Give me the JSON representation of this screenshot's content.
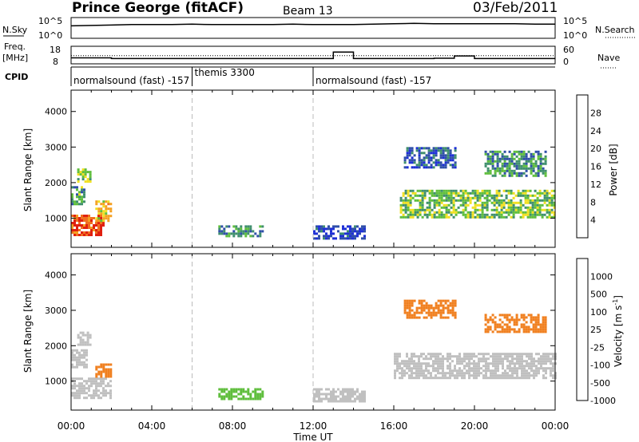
{
  "header": {
    "station": "Prince George (fitACF)",
    "beam": "Beam 13",
    "date": "03/Feb/2011"
  },
  "chart_data": [
    {
      "type": "line",
      "panel": "noise",
      "left_label": "N.Sky",
      "right_label": "N.Search",
      "left_ticks": [
        "10^5",
        "10^0"
      ],
      "right_ticks": [
        "10^5",
        "10^0"
      ],
      "x": [
        "00:00",
        "01:00",
        "02:00",
        "03:00",
        "04:00",
        "05:00",
        "06:00",
        "07:00",
        "08:00",
        "09:00",
        "10:00",
        "11:00",
        "12:00",
        "13:00",
        "14:00",
        "15:00",
        "16:00",
        "17:00",
        "18:00",
        "19:00",
        "20:00",
        "21:00",
        "22:00",
        "23:00",
        "00:00"
      ],
      "series": [
        {
          "values": [
            3.0,
            3.1,
            3.2,
            3.3,
            3.3,
            3.3,
            3.4,
            3.3,
            3.3,
            3.3,
            3.3,
            3.4,
            3.3,
            3.3,
            3.3,
            3.4,
            3.5,
            3.6,
            3.5,
            3.5,
            3.5,
            3.5,
            3.5,
            3.4,
            3.4
          ],
          "style": "solid"
        }
      ]
    },
    {
      "type": "line",
      "panel": "frequency",
      "left_label": "Freq.",
      "left_unit": "[MHz]",
      "right_label": "Nave",
      "left_ticks": [
        "18",
        "8"
      ],
      "right_ticks": [
        "60",
        "0"
      ],
      "x": [
        "00:00",
        "02:00",
        "04:00",
        "06:00",
        "08:00",
        "10:00",
        "12:00",
        "13:00",
        "14:00",
        "16:00",
        "18:00",
        "19:00",
        "20:00",
        "22:00",
        "00:00"
      ],
      "series": [
        {
          "name": "Freq",
          "values": [
            11.4,
            11.0,
            11.0,
            11.0,
            11.0,
            11.0,
            11.0,
            14.7,
            11.0,
            11.0,
            11.2,
            12.5,
            11.0,
            11.0,
            11.0
          ],
          "style": "solid"
        },
        {
          "name": "Nave",
          "values": [
            28,
            28,
            28,
            28,
            28,
            28,
            28,
            28,
            28,
            28,
            28,
            28,
            28,
            28,
            28
          ],
          "style": "dotted"
        }
      ]
    },
    {
      "type": "table",
      "panel": "cpid",
      "label": "CPID",
      "segments": [
        {
          "start": "00:00",
          "end": "06:00",
          "label": "normalsound (fast) -157"
        },
        {
          "start": "06:00",
          "end": "12:00",
          "label": "themis 3300"
        },
        {
          "start": "12:00",
          "end": "00:00",
          "label": "normalsound (fast) -157"
        }
      ]
    },
    {
      "type": "heatmap",
      "panel": "power",
      "ylabel": "Slant Range [km]",
      "yticks": [
        "1000",
        "2000",
        "3000",
        "4000"
      ],
      "ylim": [
        180,
        4600
      ],
      "colorbar_label": "Power [dB]",
      "colorbar_ticks": [
        "4",
        "8",
        "12",
        "16",
        "20",
        "24",
        "28"
      ],
      "colors": [
        "#1d2fd6",
        "#2f4fa8",
        "#3f8f6d",
        "#5fbe3d",
        "#f0e020",
        "#f5a020",
        "#f07020",
        "#e02010"
      ],
      "patches": [
        {
          "t0": 0.0,
          "t1": 1.6,
          "r0": 550,
          "r1": 1100,
          "value": 28
        },
        {
          "t0": 0.0,
          "t1": 0.6,
          "r0": 1400,
          "r1": 1900,
          "value": 12
        },
        {
          "t0": 0.3,
          "t1": 1.0,
          "r0": 2000,
          "r1": 2400,
          "value": 14
        },
        {
          "t0": 1.2,
          "t1": 2.0,
          "r0": 900,
          "r1": 1500,
          "value": 20
        },
        {
          "t0": 7.3,
          "t1": 9.5,
          "r0": 500,
          "r1": 800,
          "value": 10
        },
        {
          "t0": 12.0,
          "t1": 14.5,
          "r0": 450,
          "r1": 800,
          "value": 4
        },
        {
          "t0": 16.3,
          "t1": 24.0,
          "r0": 1000,
          "r1": 1800,
          "value": 14
        },
        {
          "t0": 16.5,
          "t1": 19.0,
          "r0": 2400,
          "r1": 3000,
          "value": 6
        },
        {
          "t0": 20.5,
          "t1": 23.5,
          "r0": 2200,
          "r1": 2900,
          "value": 10
        }
      ]
    },
    {
      "type": "heatmap",
      "panel": "velocity",
      "ylabel": "Slant Range [km]",
      "yticks": [
        "1000",
        "2000",
        "3000",
        "4000"
      ],
      "ylim": [
        180,
        4600
      ],
      "colorbar_label": "Velocity [m s",
      "colorbar_unit_sup": "-1",
      "colorbar_ticks": [
        "1000",
        "500",
        "100",
        "25",
        "-25",
        "-100",
        "-500",
        "-1000"
      ],
      "colors": [
        "#1d2fd6",
        "#2f4fa8",
        "#3f8f6d",
        "#5fbe3d",
        "#c0c0c0",
        "#f5c020",
        "#f08020",
        "#e02010"
      ],
      "patches": [
        {
          "t0": 0.0,
          "t1": 2.0,
          "r0": 550,
          "r1": 1100,
          "value": 0
        },
        {
          "t0": 0.0,
          "t1": 0.8,
          "r0": 1400,
          "r1": 1900,
          "value": 0
        },
        {
          "t0": 0.3,
          "t1": 1.0,
          "r0": 2000,
          "r1": 2400,
          "value": 0
        },
        {
          "t0": 1.2,
          "t1": 2.0,
          "r0": 1100,
          "r1": 1500,
          "value": -300
        },
        {
          "t0": 7.3,
          "t1": 9.5,
          "r0": 500,
          "r1": 800,
          "value": 50
        },
        {
          "t0": 12.0,
          "t1": 14.5,
          "r0": 450,
          "r1": 800,
          "value": 0
        },
        {
          "t0": 16.0,
          "t1": 24.0,
          "r0": 1100,
          "r1": 1800,
          "value": 0
        },
        {
          "t0": 16.5,
          "t1": 19.0,
          "r0": 2800,
          "r1": 3300,
          "value": -400
        },
        {
          "t0": 20.5,
          "t1": 23.5,
          "r0": 2400,
          "r1": 2900,
          "value": -400
        }
      ]
    }
  ],
  "x_axis": {
    "ticks": [
      "00:00",
      "04:00",
      "08:00",
      "12:00",
      "16:00",
      "20:00",
      "00:00"
    ],
    "label": "Time UT",
    "range_hours": [
      0,
      24
    ]
  }
}
